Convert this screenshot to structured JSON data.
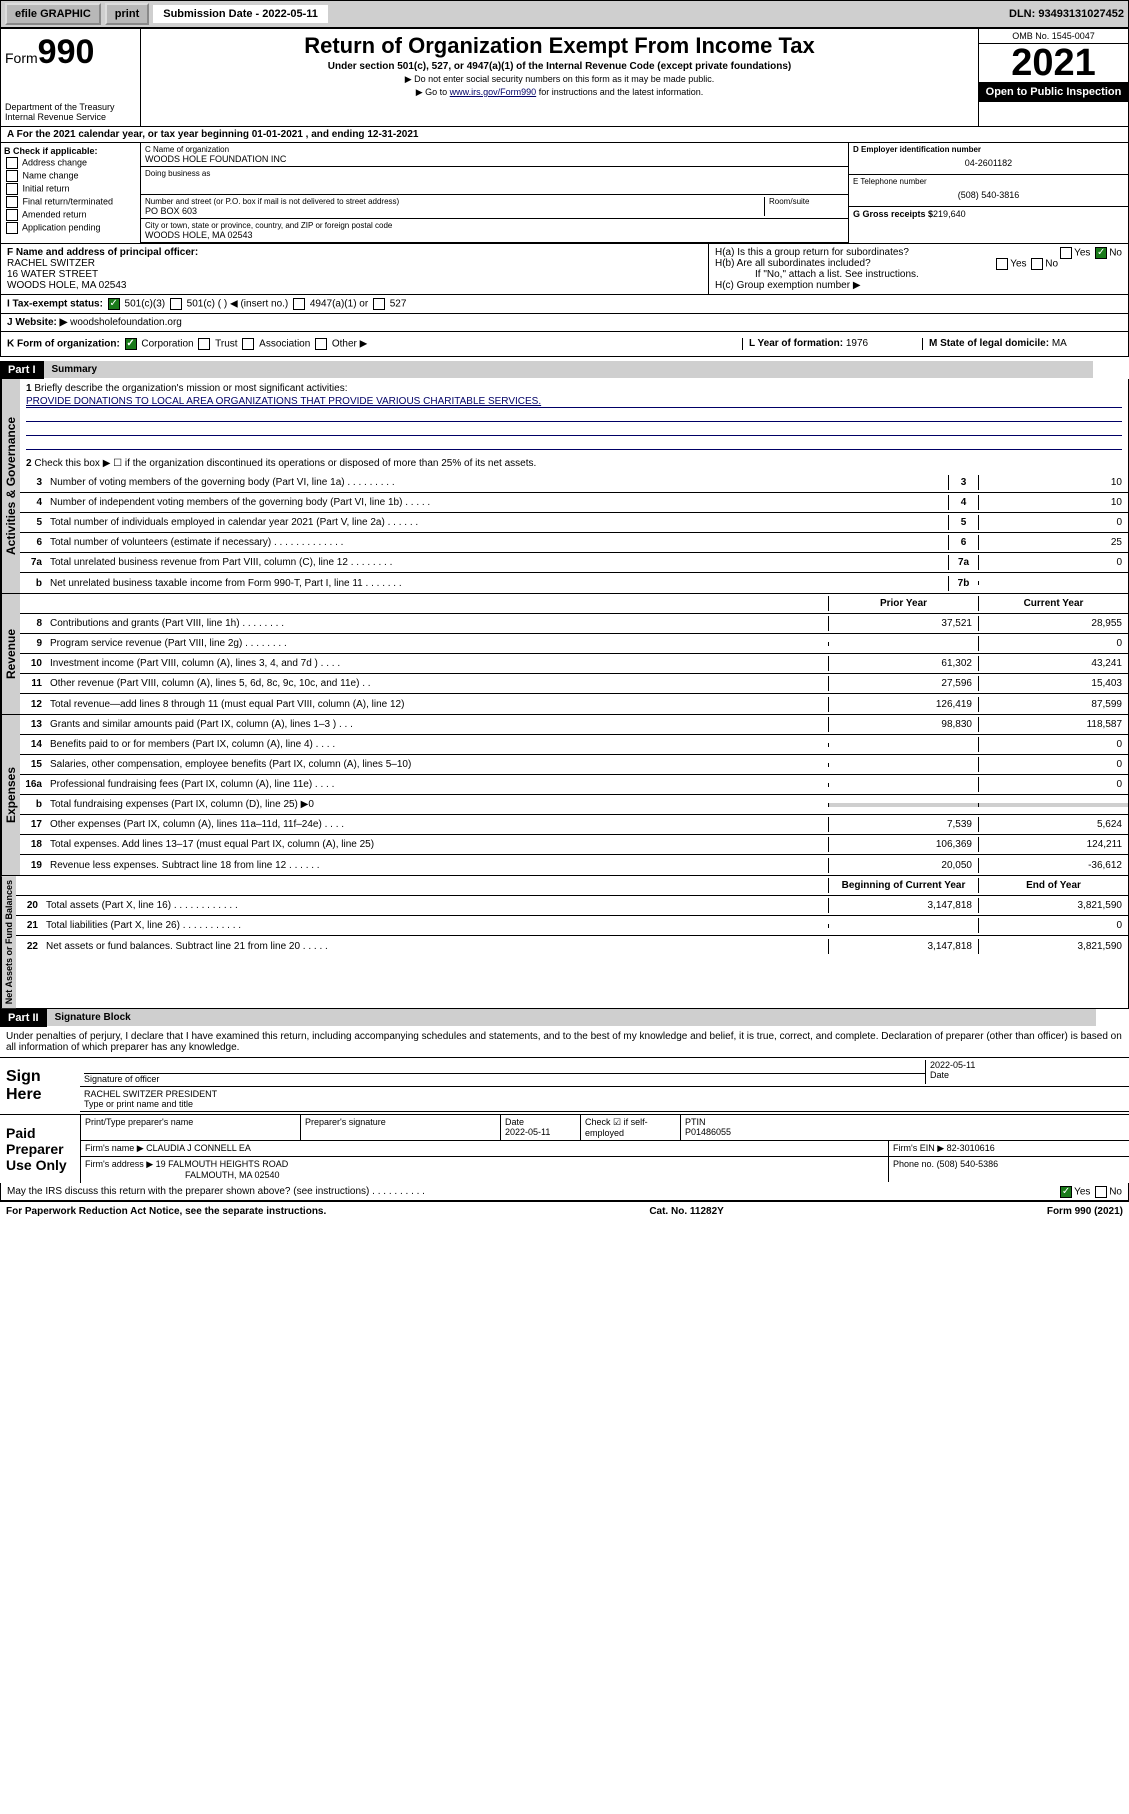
{
  "topbar": {
    "efile": "efile GRAPHIC",
    "print": "print",
    "subdate_lbl": "Submission Date - 2022-05-11",
    "dln": "DLN: 93493131027452"
  },
  "header": {
    "form_lbl": "Form",
    "form_num": "990",
    "dept": "Department of the Treasury",
    "irs": "Internal Revenue Service",
    "title": "Return of Organization Exempt From Income Tax",
    "sub": "Under section 501(c), 527, or 4947(a)(1) of the Internal Revenue Code (except private foundations)",
    "note1": "▶ Do not enter social security numbers on this form as it may be made public.",
    "note2_pre": "▶ Go to ",
    "note2_link": "www.irs.gov/Form990",
    "note2_post": " for instructions and the latest information.",
    "omb": "OMB No. 1545-0047",
    "year": "2021",
    "open_pub": "Open to Public Inspection"
  },
  "row_a": "A For the 2021 calendar year, or tax year beginning 01-01-2021   , and ending 12-31-2021",
  "col_b": {
    "lbl": "B Check if applicable:",
    "items": [
      "Address change",
      "Name change",
      "Initial return",
      "Final return/terminated",
      "Amended return",
      "Application pending"
    ]
  },
  "col_c": {
    "name_lbl": "C Name of organization",
    "name": "WOODS HOLE FOUNDATION INC",
    "dba_lbl": "Doing business as",
    "addr_lbl": "Number and street (or P.O. box if mail is not delivered to street address)",
    "room_lbl": "Room/suite",
    "addr": "PO BOX 603",
    "city_lbl": "City or town, state or province, country, and ZIP or foreign postal code",
    "city": "WOODS HOLE, MA  02543"
  },
  "col_d": {
    "ein_lbl": "D Employer identification number",
    "ein": "04-2601182",
    "tel_lbl": "E Telephone number",
    "tel": "(508) 540-3816",
    "gross_lbl": "G Gross receipts $",
    "gross": "219,640"
  },
  "section_f": {
    "lbl": "F Name and address of principal officer:",
    "name": "RACHEL SWITZER",
    "addr1": "16 WATER STREET",
    "addr2": "WOODS HOLE, MA  02543"
  },
  "section_h": {
    "ha": "H(a)  Is this a group return for subordinates?",
    "hb": "H(b)  Are all subordinates included?",
    "hb_note": "If \"No,\" attach a list. See instructions.",
    "hc": "H(c)  Group exemption number ▶",
    "yes": "Yes",
    "no": "No"
  },
  "line_i": {
    "lbl": "I   Tax-exempt status:",
    "opts": [
      "501(c)(3)",
      "501(c) (   ) ◀ (insert no.)",
      "4947(a)(1) or",
      "527"
    ]
  },
  "line_j": {
    "lbl": "J   Website: ▶",
    "val": "woodsholefoundation.org"
  },
  "line_k": {
    "lbl": "K Form of organization:",
    "opts": [
      "Corporation",
      "Trust",
      "Association",
      "Other ▶"
    ],
    "l_lbl": "L Year of formation:",
    "l_val": "1976",
    "m_lbl": "M State of legal domicile:",
    "m_val": "MA"
  },
  "part1": {
    "hdr": "Part I",
    "title": "Summary",
    "q1": "Briefly describe the organization's mission or most significant activities:",
    "mission": "PROVIDE DONATIONS TO LOCAL AREA ORGANIZATIONS THAT PROVIDE VARIOUS CHARITABLE SERVICES.",
    "q2": "Check this box ▶ ☐  if the organization discontinued its operations or disposed of more than 25% of its net assets.",
    "governance": [
      {
        "n": "3",
        "d": "Number of voting members of the governing body (Part VI, line 1a)   .   .   .   .   .   .   .   .   .",
        "b": "3",
        "v": "10"
      },
      {
        "n": "4",
        "d": "Number of independent voting members of the governing body (Part VI, line 1b)   .   .   .   .   .",
        "b": "4",
        "v": "10"
      },
      {
        "n": "5",
        "d": "Total number of individuals employed in calendar year 2021 (Part V, line 2a)   .   .   .   .   .   .",
        "b": "5",
        "v": "0"
      },
      {
        "n": "6",
        "d": "Total number of volunteers (estimate if necessary)   .   .   .   .   .   .   .   .   .   .   .   .   .",
        "b": "6",
        "v": "25"
      },
      {
        "n": "7a",
        "d": "Total unrelated business revenue from Part VIII, column (C), line 12   .   .   .   .   .   .   .   .",
        "b": "7a",
        "v": "0"
      },
      {
        "n": "b",
        "d": "Net unrelated business taxable income from Form 990-T, Part I, line 11   .   .   .   .   .   .   .",
        "b": "7b",
        "v": ""
      }
    ],
    "hdr_prior": "Prior Year",
    "hdr_curr": "Current Year",
    "revenue": [
      {
        "n": "8",
        "d": "Contributions and grants (Part VIII, line 1h)   .   .   .   .   .   .   .   .",
        "p": "37,521",
        "c": "28,955"
      },
      {
        "n": "9",
        "d": "Program service revenue (Part VIII, line 2g)   .   .   .   .   .   .   .   .",
        "p": "",
        "c": "0"
      },
      {
        "n": "10",
        "d": "Investment income (Part VIII, column (A), lines 3, 4, and 7d )   .   .   .   .",
        "p": "61,302",
        "c": "43,241"
      },
      {
        "n": "11",
        "d": "Other revenue (Part VIII, column (A), lines 5, 6d, 8c, 9c, 10c, and 11e)   .   .",
        "p": "27,596",
        "c": "15,403"
      },
      {
        "n": "12",
        "d": "Total revenue—add lines 8 through 11 (must equal Part VIII, column (A), line 12)",
        "p": "126,419",
        "c": "87,599"
      }
    ],
    "expenses": [
      {
        "n": "13",
        "d": "Grants and similar amounts paid (Part IX, column (A), lines 1–3 )   .   .   .",
        "p": "98,830",
        "c": "118,587"
      },
      {
        "n": "14",
        "d": "Benefits paid to or for members (Part IX, column (A), line 4)   .   .   .   .",
        "p": "",
        "c": "0"
      },
      {
        "n": "15",
        "d": "Salaries, other compensation, employee benefits (Part IX, column (A), lines 5–10)",
        "p": "",
        "c": "0"
      },
      {
        "n": "16a",
        "d": "Professional fundraising fees (Part IX, column (A), line 11e)   .   .   .   .",
        "p": "",
        "c": "0"
      },
      {
        "n": "b",
        "d": "Total fundraising expenses (Part IX, column (D), line 25) ▶0",
        "p": "shade",
        "c": "shade"
      },
      {
        "n": "17",
        "d": "Other expenses (Part IX, column (A), lines 11a–11d, 11f–24e)   .   .   .   .",
        "p": "7,539",
        "c": "5,624"
      },
      {
        "n": "18",
        "d": "Total expenses. Add lines 13–17 (must equal Part IX, column (A), line 25)",
        "p": "106,369",
        "c": "124,211"
      },
      {
        "n": "19",
        "d": "Revenue less expenses. Subtract line 18 from line 12   .   .   .   .   .   .",
        "p": "20,050",
        "c": "-36,612"
      }
    ],
    "hdr_beg": "Beginning of Current Year",
    "hdr_end": "End of Year",
    "netassets": [
      {
        "n": "20",
        "d": "Total assets (Part X, line 16)   .   .   .   .   .   .   .   .   .   .   .   .",
        "p": "3,147,818",
        "c": "3,821,590"
      },
      {
        "n": "21",
        "d": "Total liabilities (Part X, line 26)   .   .   .   .   .   .   .   .   .   .   .",
        "p": "",
        "c": "0"
      },
      {
        "n": "22",
        "d": "Net assets or fund balances. Subtract line 21 from line 20   .   .   .   .   .",
        "p": "3,147,818",
        "c": "3,821,590"
      }
    ]
  },
  "vtabs": {
    "gov": "Activities & Governance",
    "rev": "Revenue",
    "exp": "Expenses",
    "net": "Net Assets or Fund Balances"
  },
  "part2": {
    "hdr": "Part II",
    "title": "Signature Block",
    "intro": "Under penalties of perjury, I declare that I have examined this return, including accompanying schedules and statements, and to the best of my knowledge and belief, it is true, correct, and complete. Declaration of preparer (other than officer) is based on all information of which preparer has any knowledge.",
    "sign_here": "Sign Here",
    "sig_officer": "Signature of officer",
    "sig_date": "2022-05-11",
    "date_lbl": "Date",
    "officer_name": "RACHEL SWITZER  PRESIDENT",
    "name_title_lbl": "Type or print name and title",
    "paid_lbl": "Paid Preparer Use Only",
    "prep_name_lbl": "Print/Type preparer's name",
    "prep_sig_lbl": "Preparer's signature",
    "prep_date_lbl": "Date",
    "prep_date": "2022-05-11",
    "self_emp_lbl": "Check ☑ if self-employed",
    "ptin_lbl": "PTIN",
    "ptin": "P01486055",
    "firm_name_lbl": "Firm's name    ▶",
    "firm_name": "CLAUDIA J CONNELL EA",
    "firm_ein_lbl": "Firm's EIN ▶",
    "firm_ein": "82-3010616",
    "firm_addr_lbl": "Firm's address ▶",
    "firm_addr": "19 FALMOUTH HEIGHTS ROAD",
    "firm_city": "FALMOUTH, MA  02540",
    "phone_lbl": "Phone no.",
    "phone": "(508) 540-5386",
    "may_irs": "May the IRS discuss this return with the preparer shown above? (see instructions)   .   .   .   .   .   .   .   .   .   ."
  },
  "footer": {
    "left": "For Paperwork Reduction Act Notice, see the separate instructions.",
    "mid": "Cat. No. 11282Y",
    "right": "Form 990 (2021)"
  }
}
